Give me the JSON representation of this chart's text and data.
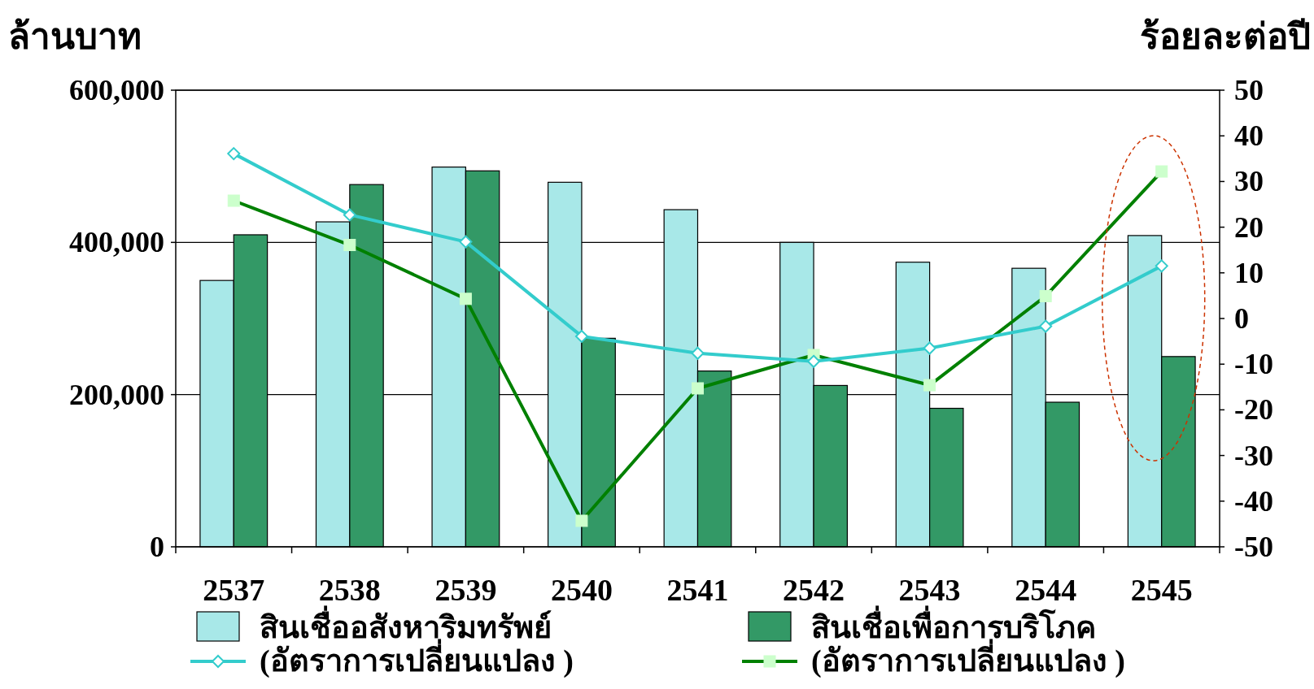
{
  "chart_data": {
    "type": "bar",
    "ylabel": "ล้านบาท",
    "y2label": "ร้อยละต่อปี",
    "categories": [
      "2537",
      "2538",
      "2539",
      "2540",
      "2541",
      "2542",
      "2543",
      "2544",
      "2545"
    ],
    "series": [
      {
        "name": "สินเชื่ออสังหาริมทรัพย์",
        "type": "bar",
        "color": "#a8e8e8",
        "values": [
          350000,
          427000,
          499000,
          479000,
          443000,
          400000,
          374000,
          366000,
          409000
        ]
      },
      {
        "name": "สินเชื่อเพื่อการบริโภค",
        "type": "bar",
        "color": "#339966",
        "values": [
          410000,
          476000,
          494000,
          274000,
          231000,
          212000,
          182000,
          190000,
          250000
        ]
      },
      {
        "name": "(อัตราการเปลี่ยนแปลง )",
        "type": "line",
        "axis": "y2",
        "color": "#33cccc",
        "marker": "diamond",
        "values": [
          36.1,
          22.7,
          16.8,
          -3.9,
          -7.6,
          -9.4,
          -6.5,
          -1.7,
          11.5
        ]
      },
      {
        "name": "(อัตราการเปลี่ยนแปลง )",
        "type": "line",
        "axis": "y2",
        "color": "#008000",
        "marker": "square",
        "values": [
          25.8,
          16.1,
          4.3,
          -44.3,
          -15.3,
          -8.0,
          -14.6,
          4.9,
          32.2
        ]
      }
    ],
    "ylim": [
      0,
      600000
    ],
    "yticks": [
      {
        "value": 0,
        "label": "0"
      },
      {
        "value": 200000,
        "label": "200,000"
      },
      {
        "value": 400000,
        "label": "400,000"
      },
      {
        "value": 600000,
        "label": "600,000"
      }
    ],
    "y2lim": [
      -50,
      50
    ],
    "y2ticks": [
      -50,
      -40,
      -30,
      -20,
      -10,
      0,
      10,
      20,
      30,
      40,
      50
    ],
    "grid": "y",
    "legend": "bottom"
  }
}
